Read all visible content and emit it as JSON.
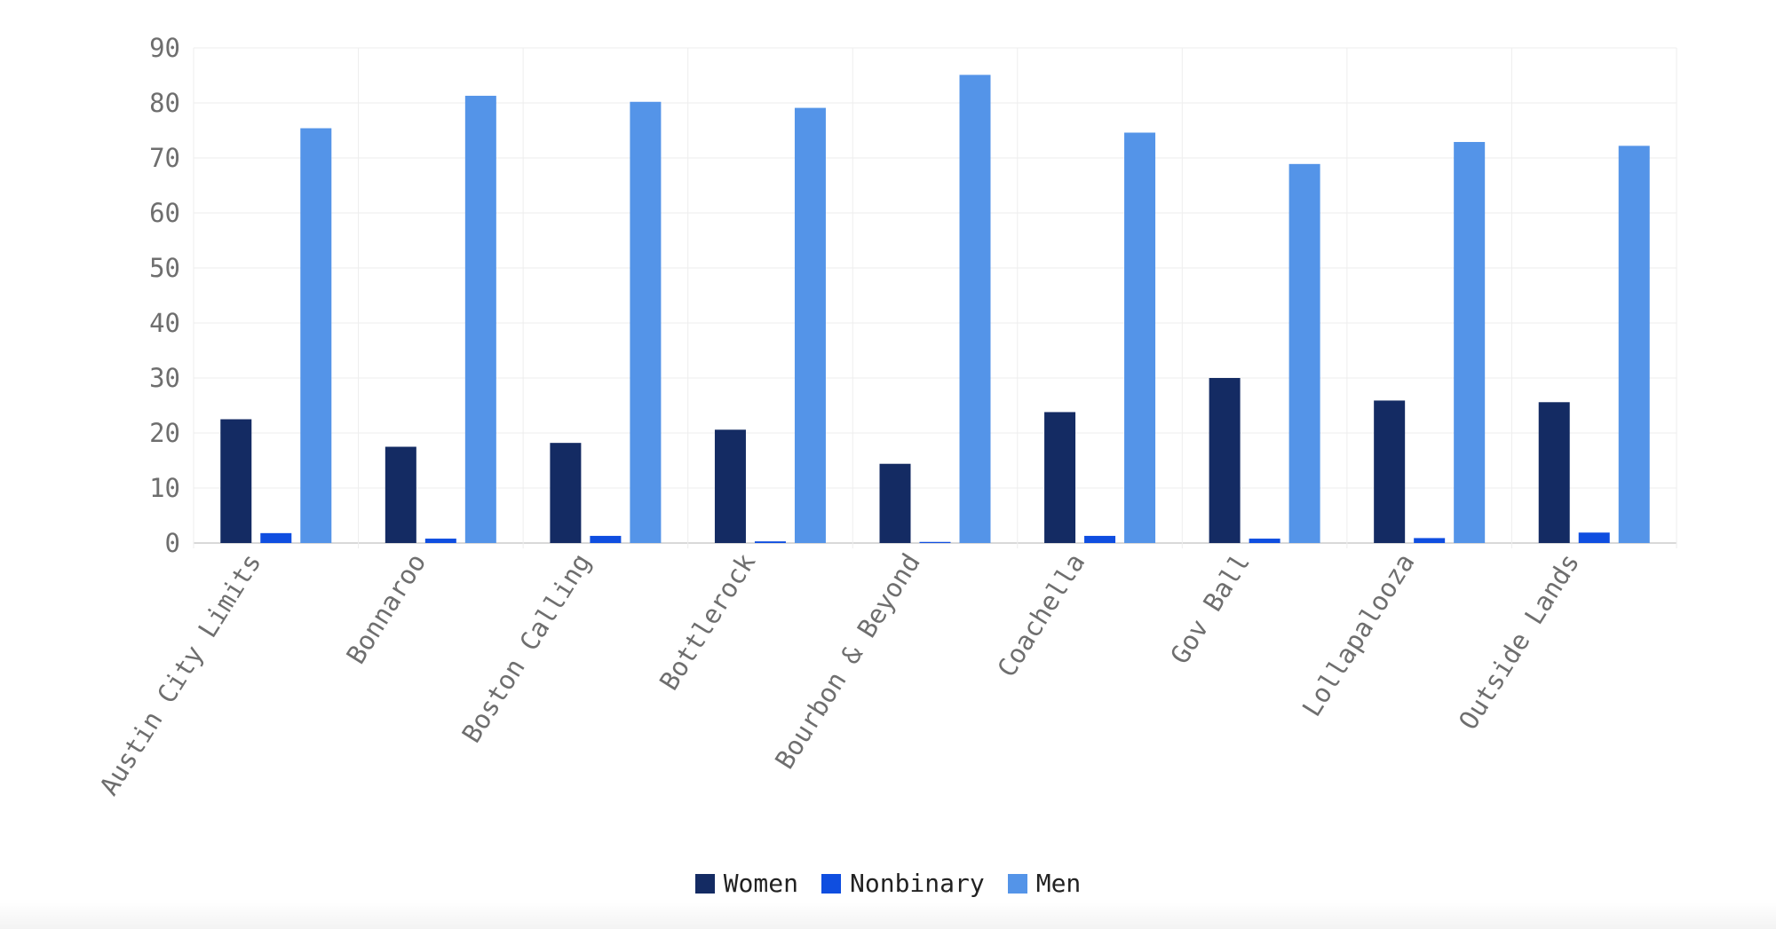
{
  "chart_data": {
    "type": "bar",
    "title": "",
    "xlabel": "",
    "ylabel": "",
    "ylim": [
      0,
      90
    ],
    "yticks": [
      0,
      10,
      20,
      30,
      40,
      50,
      60,
      70,
      80,
      90
    ],
    "grid": true,
    "legend_position": "bottom-center",
    "categories": [
      "Austin City Limits",
      "Bonnaroo",
      "Boston Calling",
      "Bottlerock",
      "Bourbon & Beyond",
      "Coachella",
      "Gov Ball",
      "Lollapalooza",
      "Outside Lands"
    ],
    "series": [
      {
        "name": "Women",
        "color": "#142b63",
        "values": [
          22.5,
          17.5,
          18.2,
          20.6,
          14.4,
          23.8,
          30.0,
          25.9,
          25.6
        ]
      },
      {
        "name": "Nonbinary",
        "color": "#0f4ee0",
        "values": [
          1.8,
          0.8,
          1.3,
          0.3,
          0.2,
          1.3,
          0.8,
          0.9,
          1.9
        ]
      },
      {
        "name": "Men",
        "color": "#5494e8",
        "values": [
          75.4,
          81.3,
          80.2,
          79.1,
          85.1,
          74.6,
          68.9,
          72.9,
          72.2
        ]
      }
    ]
  },
  "legend": {
    "items": [
      {
        "label": "Women",
        "color": "#142b63"
      },
      {
        "label": "Nonbinary",
        "color": "#0f4ee0"
      },
      {
        "label": "Men",
        "color": "#5494e8"
      }
    ]
  }
}
